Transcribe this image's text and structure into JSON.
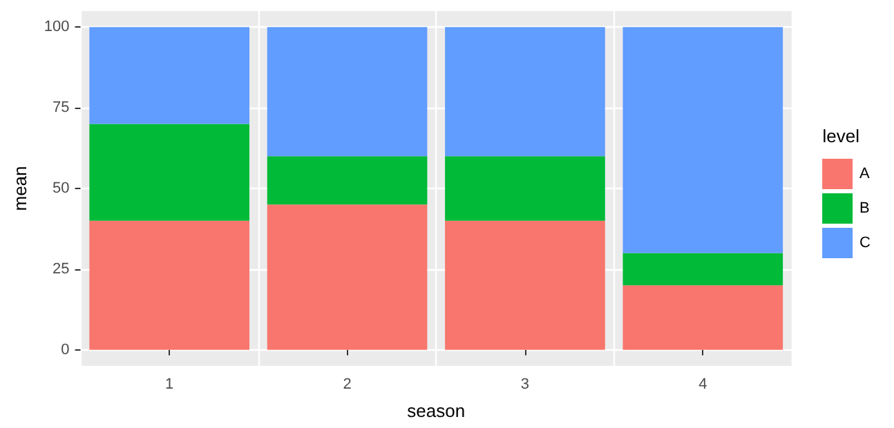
{
  "chart_data": {
    "type": "bar",
    "stacked": true,
    "xlabel": "season",
    "ylabel": "mean",
    "legend_title": "level",
    "categories": [
      "1",
      "2",
      "3",
      "4"
    ],
    "series": [
      {
        "name": "A",
        "color": "#f8766d",
        "values": [
          40,
          45,
          40,
          20
        ]
      },
      {
        "name": "B",
        "color": "#00ba38",
        "values": [
          30,
          15,
          20,
          10
        ]
      },
      {
        "name": "C",
        "color": "#619cff",
        "values": [
          30,
          40,
          40,
          70
        ]
      }
    ],
    "ylim": [
      -5,
      105
    ],
    "yticks": [
      0,
      25,
      50,
      75,
      100
    ],
    "grid": true,
    "legend": "right"
  }
}
